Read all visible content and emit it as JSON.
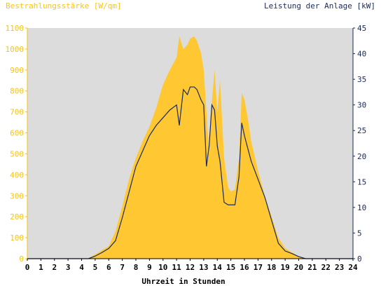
{
  "chart_data": {
    "type": "area",
    "ylabel_left": "Bestrahlungsstärke [W/qm]",
    "ylabel_right": "Leistung der Anlage [kW]",
    "xlabel": "Uhrzeit in Stunden",
    "xlim": [
      0,
      24
    ],
    "ylim_left": [
      0,
      1100
    ],
    "ylim_right": [
      0,
      45
    ],
    "x_ticks": [
      "0",
      "1",
      "2",
      "3",
      "4",
      "5",
      "6",
      "7",
      "8",
      "9",
      "10",
      "11",
      "12",
      "13",
      "14",
      "15",
      "16",
      "17",
      "18",
      "19",
      "20",
      "21",
      "22",
      "23",
      "24"
    ],
    "y_ticks_left": [
      "0",
      "100",
      "200",
      "300",
      "400",
      "500",
      "600",
      "700",
      "800",
      "900",
      "1000",
      "1100"
    ],
    "y_ticks_right": [
      "0",
      "5",
      "10",
      "15",
      "20",
      "25",
      "30",
      "35",
      "40",
      "45"
    ],
    "grid": false,
    "colors": {
      "background": "#dcdcdc",
      "irradiance_fill": "#ffc832",
      "power_line": "#1a2a5a",
      "left_axis": "#f5c518",
      "right_axis": "#1a2a5a"
    },
    "series": [
      {
        "axis": "left",
        "kind": "area",
        "x": [
          0,
          4.5,
          5,
          5.5,
          6,
          6.5,
          7,
          7.5,
          8,
          8.5,
          9,
          9.5,
          10,
          10.5,
          11,
          11.2,
          11.5,
          11.8,
          12,
          12.3,
          12.5,
          12.8,
          13,
          13.2,
          13.4,
          13.6,
          13.8,
          14,
          14.2,
          14.5,
          14.8,
          15,
          15.3,
          15.6,
          15.8,
          16,
          16.3,
          16.5,
          17,
          17.5,
          18,
          18.5,
          19,
          19.5,
          20,
          20.5,
          21,
          24
        ],
        "y": [
          0,
          0,
          20,
          40,
          60,
          130,
          250,
          380,
          480,
          560,
          630,
          720,
          830,
          900,
          960,
          1060,
          1000,
          1020,
          1050,
          1060,
          1040,
          980,
          900,
          700,
          500,
          750,
          900,
          700,
          850,
          480,
          340,
          320,
          330,
          480,
          790,
          760,
          650,
          560,
          420,
          300,
          200,
          100,
          50,
          30,
          10,
          0,
          0,
          0
        ]
      },
      {
        "axis": "right",
        "kind": "line",
        "x": [
          0,
          4.5,
          5,
          5.5,
          6,
          6.5,
          7,
          7.5,
          8,
          8.5,
          9,
          9.5,
          10,
          10.5,
          11,
          11.2,
          11.5,
          11.8,
          12,
          12.3,
          12.5,
          12.8,
          13,
          13.2,
          13.4,
          13.6,
          13.8,
          14,
          14.2,
          14.5,
          14.8,
          15,
          15.3,
          15.6,
          15.8,
          16,
          16.3,
          16.5,
          17,
          17.5,
          18,
          18.5,
          19,
          19.5,
          20,
          20.5,
          21,
          24
        ],
        "y": [
          0,
          0,
          0.5,
          1.2,
          2,
          3.5,
          8,
          13,
          18,
          21,
          24,
          26,
          27.5,
          29,
          30,
          26,
          33,
          32,
          33.5,
          33.5,
          33,
          31,
          30,
          18,
          22,
          30,
          29,
          22,
          19,
          11,
          10.5,
          10.5,
          10.5,
          16,
          26.5,
          24,
          21,
          19,
          15.5,
          12,
          7.5,
          3,
          1.5,
          1,
          0.4,
          0,
          0,
          0
        ]
      }
    ]
  }
}
